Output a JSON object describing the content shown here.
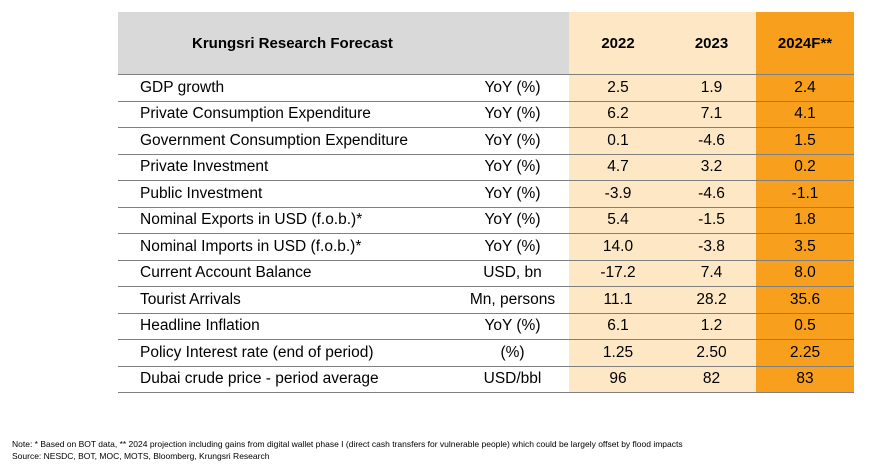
{
  "table": {
    "title": "Krungsri Research Forecast",
    "years": [
      "2022",
      "2023",
      "2024F**"
    ],
    "rows": [
      {
        "label": "GDP growth",
        "unit": "YoY (%)",
        "v2022": "2.5",
        "v2023": "1.9",
        "v2024": "2.4"
      },
      {
        "label": "Private Consumption Expenditure",
        "unit": "YoY (%)",
        "v2022": "6.2",
        "v2023": "7.1",
        "v2024": "4.1"
      },
      {
        "label": "Government Consumption Expenditure",
        "unit": "YoY (%)",
        "v2022": "0.1",
        "v2023": "-4.6",
        "v2024": "1.5"
      },
      {
        "label": "Private Investment",
        "unit": "YoY (%)",
        "v2022": "4.7",
        "v2023": "3.2",
        "v2024": "0.2"
      },
      {
        "label": "Public Investment",
        "unit": "YoY (%)",
        "v2022": "-3.9",
        "v2023": "-4.6",
        "v2024": "-1.1"
      },
      {
        "label": "Nominal Exports in USD (f.o.b.)*",
        "unit": "YoY (%)",
        "v2022": "5.4",
        "v2023": "-1.5",
        "v2024": "1.8"
      },
      {
        "label": "Nominal Imports in USD (f.o.b.)*",
        "unit": "YoY (%)",
        "v2022": "14.0",
        "v2023": "-3.8",
        "v2024": "3.5"
      },
      {
        "label": "Current Account Balance",
        "unit": "USD, bn",
        "v2022": "-17.2",
        "v2023": "7.4",
        "v2024": "8.0"
      },
      {
        "label": "Tourist Arrivals",
        "unit": "Mn, persons",
        "v2022": "11.1",
        "v2023": "28.2",
        "v2024": "35.6"
      },
      {
        "label": "Headline Inflation",
        "unit": "YoY (%)",
        "v2022": "6.1",
        "v2023": "1.2",
        "v2024": "0.5"
      },
      {
        "label": "Policy Interest rate (end of period)",
        "unit": "(%)",
        "v2022": "1.25",
        "v2023": "2.50",
        "v2024": "2.25"
      },
      {
        "label": "Dubai crude price - period average",
        "unit": "USD/bbl",
        "v2022": "96",
        "v2023": "82",
        "v2024": "83"
      }
    ]
  },
  "notes": {
    "note": "Note: * Based on BOT data, ** 2024 projection including gains from digital wallet phase I (direct cash transfers for vulnerable people) which could be largely offset by flood impacts",
    "source": "Source: NESDC, BOT, MOC, MOTS, Bloomberg, Krungsri Research"
  },
  "colors": {
    "header_gray": "#d9d9d9",
    "light_orange": "#fde7c4",
    "forecast_orange": "#f8a01e"
  }
}
